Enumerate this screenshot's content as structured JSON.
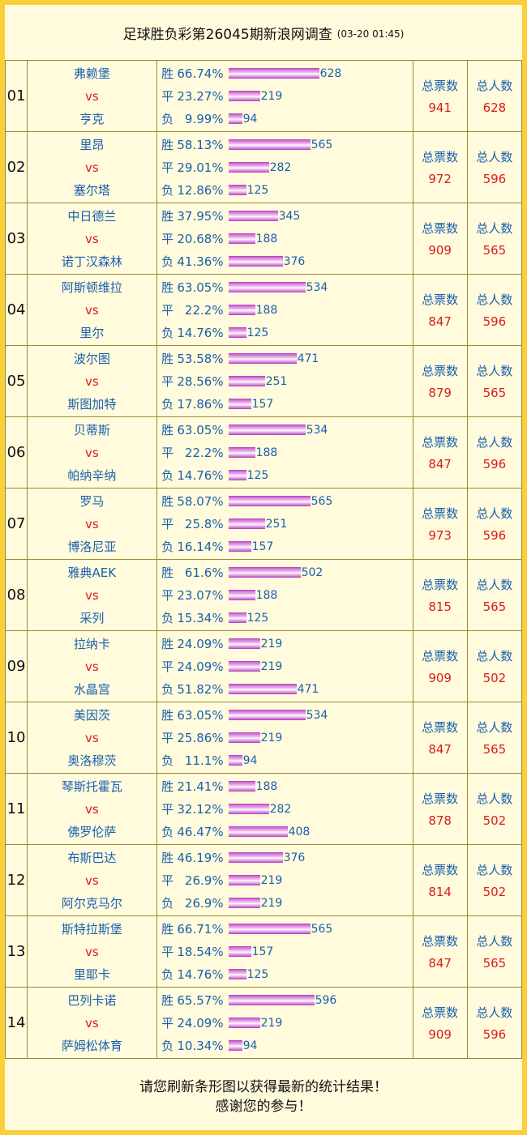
{
  "header": {
    "title": "足球胜负彩第26045期新浪网调查",
    "date": "(03-20 01:45)"
  },
  "vs_label": "vs",
  "total_votes_label": "总票数",
  "total_people_label": "总人数",
  "bar_color": "#d478da",
  "matches": [
    {
      "no": "01",
      "home": "弗赖堡",
      "away": "亨克",
      "rows": [
        {
          "k": "胜",
          "p": "66.74%",
          "c": 628
        },
        {
          "k": "平",
          "p": "23.27%",
          "c": 219
        },
        {
          "k": "负",
          "p": "9.99%",
          "c": 94
        }
      ],
      "votes": "941",
      "people": "628"
    },
    {
      "no": "02",
      "home": "里昂",
      "away": "塞尔塔",
      "rows": [
        {
          "k": "胜",
          "p": "58.13%",
          "c": 565
        },
        {
          "k": "平",
          "p": "29.01%",
          "c": 282
        },
        {
          "k": "负",
          "p": "12.86%",
          "c": 125
        }
      ],
      "votes": "972",
      "people": "596"
    },
    {
      "no": "03",
      "home": "中日德兰",
      "away": "诺丁汉森林",
      "rows": [
        {
          "k": "胜",
          "p": "37.95%",
          "c": 345
        },
        {
          "k": "平",
          "p": "20.68%",
          "c": 188
        },
        {
          "k": "负",
          "p": "41.36%",
          "c": 376
        }
      ],
      "votes": "909",
      "people": "565"
    },
    {
      "no": "04",
      "home": "阿斯顿维拉",
      "away": "里尔",
      "rows": [
        {
          "k": "胜",
          "p": "63.05%",
          "c": 534
        },
        {
          "k": "平",
          "p": "22.2%",
          "c": 188
        },
        {
          "k": "负",
          "p": "14.76%",
          "c": 125
        }
      ],
      "votes": "847",
      "people": "596"
    },
    {
      "no": "05",
      "home": "波尔图",
      "away": "斯图加特",
      "rows": [
        {
          "k": "胜",
          "p": "53.58%",
          "c": 471
        },
        {
          "k": "平",
          "p": "28.56%",
          "c": 251
        },
        {
          "k": "负",
          "p": "17.86%",
          "c": 157
        }
      ],
      "votes": "879",
      "people": "565"
    },
    {
      "no": "06",
      "home": "贝蒂斯",
      "away": "帕纳辛纳",
      "rows": [
        {
          "k": "胜",
          "p": "63.05%",
          "c": 534
        },
        {
          "k": "平",
          "p": "22.2%",
          "c": 188
        },
        {
          "k": "负",
          "p": "14.76%",
          "c": 125
        }
      ],
      "votes": "847",
      "people": "596"
    },
    {
      "no": "07",
      "home": "罗马",
      "away": "博洛尼亚",
      "rows": [
        {
          "k": "胜",
          "p": "58.07%",
          "c": 565
        },
        {
          "k": "平",
          "p": "25.8%",
          "c": 251
        },
        {
          "k": "负",
          "p": "16.14%",
          "c": 157
        }
      ],
      "votes": "973",
      "people": "596"
    },
    {
      "no": "08",
      "home": "雅典AEK",
      "away": "采列",
      "rows": [
        {
          "k": "胜",
          "p": "61.6%",
          "c": 502
        },
        {
          "k": "平",
          "p": "23.07%",
          "c": 188
        },
        {
          "k": "负",
          "p": "15.34%",
          "c": 125
        }
      ],
      "votes": "815",
      "people": "565"
    },
    {
      "no": "09",
      "home": "拉纳卡",
      "away": "水晶宫",
      "rows": [
        {
          "k": "胜",
          "p": "24.09%",
          "c": 219
        },
        {
          "k": "平",
          "p": "24.09%",
          "c": 219
        },
        {
          "k": "负",
          "p": "51.82%",
          "c": 471
        }
      ],
      "votes": "909",
      "people": "502"
    },
    {
      "no": "10",
      "home": "美因茨",
      "away": "奥洛穆茨",
      "rows": [
        {
          "k": "胜",
          "p": "63.05%",
          "c": 534
        },
        {
          "k": "平",
          "p": "25.86%",
          "c": 219
        },
        {
          "k": "负",
          "p": "11.1%",
          "c": 94
        }
      ],
      "votes": "847",
      "people": "565"
    },
    {
      "no": "11",
      "home": "琴斯托霍瓦",
      "away": "佛罗伦萨",
      "rows": [
        {
          "k": "胜",
          "p": "21.41%",
          "c": 188
        },
        {
          "k": "平",
          "p": "32.12%",
          "c": 282
        },
        {
          "k": "负",
          "p": "46.47%",
          "c": 408
        }
      ],
      "votes": "878",
      "people": "502"
    },
    {
      "no": "12",
      "home": "布斯巴达",
      "away": "阿尔克马尔",
      "rows": [
        {
          "k": "胜",
          "p": "46.19%",
          "c": 376
        },
        {
          "k": "平",
          "p": "26.9%",
          "c": 219
        },
        {
          "k": "负",
          "p": "26.9%",
          "c": 219
        }
      ],
      "votes": "814",
      "people": "502"
    },
    {
      "no": "13",
      "home": "斯特拉斯堡",
      "away": "里耶卡",
      "rows": [
        {
          "k": "胜",
          "p": "66.71%",
          "c": 565
        },
        {
          "k": "平",
          "p": "18.54%",
          "c": 157
        },
        {
          "k": "负",
          "p": "14.76%",
          "c": 125
        }
      ],
      "votes": "847",
      "people": "565"
    },
    {
      "no": "14",
      "home": "巴列卡诺",
      "away": "萨姆松体育",
      "rows": [
        {
          "k": "胜",
          "p": "65.57%",
          "c": 596
        },
        {
          "k": "平",
          "p": "24.09%",
          "c": 219
        },
        {
          "k": "负",
          "p": "10.34%",
          "c": 94
        }
      ],
      "votes": "909",
      "people": "596"
    }
  ],
  "footer": {
    "line1": "请您刷新条形图以获得最新的统计结果！",
    "line2": "感谢您的参与！"
  }
}
